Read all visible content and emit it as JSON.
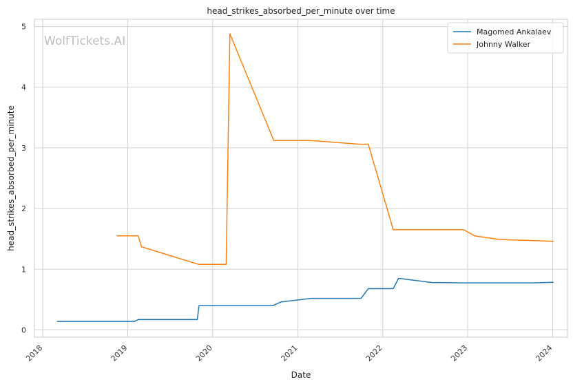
{
  "chart_data": {
    "type": "line",
    "title": "head_strikes_absorbed_per_minute over time",
    "xlabel": "Date",
    "ylabel": "head_strikes_absorbed_per_minute",
    "watermark": "WolfTickets.AI",
    "xlim": [
      "2017-11-26",
      "2024-03-05"
    ],
    "ylim": [
      -0.12,
      5.12
    ],
    "x_ticks": [
      "2018",
      "2019",
      "2020",
      "2021",
      "2022",
      "2023",
      "2024"
    ],
    "y_ticks": [
      0,
      1,
      2,
      3,
      4,
      5
    ],
    "grid": true,
    "legend_position": "top-right",
    "series": [
      {
        "name": "Magomed Ankalaev",
        "color": "#1f77b4",
        "points": [
          [
            "2018-03-03",
            0.14
          ],
          [
            "2019-01-31",
            0.14
          ],
          [
            "2019-02-15",
            0.17
          ],
          [
            "2019-10-27",
            0.17
          ],
          [
            "2019-11-03",
            0.4
          ],
          [
            "2020-09-15",
            0.4
          ],
          [
            "2020-10-20",
            0.46
          ],
          [
            "2021-02-28",
            0.52
          ],
          [
            "2021-09-30",
            0.52
          ],
          [
            "2021-10-31",
            0.68
          ],
          [
            "2022-02-15",
            0.68
          ],
          [
            "2022-03-10",
            0.85
          ],
          [
            "2022-08-01",
            0.78
          ],
          [
            "2022-12-15",
            0.775
          ],
          [
            "2023-10-10",
            0.775
          ],
          [
            "2024-01-05",
            0.785
          ]
        ]
      },
      {
        "name": "Johnny Walker",
        "color": "#ff7f0e",
        "points": [
          [
            "2018-11-15",
            1.55
          ],
          [
            "2019-02-15",
            1.55
          ],
          [
            "2019-03-01",
            1.37
          ],
          [
            "2019-11-01",
            1.08
          ],
          [
            "2020-02-28",
            1.08
          ],
          [
            "2020-03-15",
            4.88
          ],
          [
            "2020-09-20",
            3.12
          ],
          [
            "2021-02-27",
            3.12
          ],
          [
            "2021-09-25",
            3.06
          ],
          [
            "2021-10-31",
            3.06
          ],
          [
            "2022-02-15",
            1.65
          ],
          [
            "2022-08-15",
            1.65
          ],
          [
            "2022-12-15",
            1.65
          ],
          [
            "2023-01-31",
            1.55
          ],
          [
            "2023-05-15",
            1.49
          ],
          [
            "2024-01-05",
            1.46
          ]
        ]
      }
    ]
  }
}
